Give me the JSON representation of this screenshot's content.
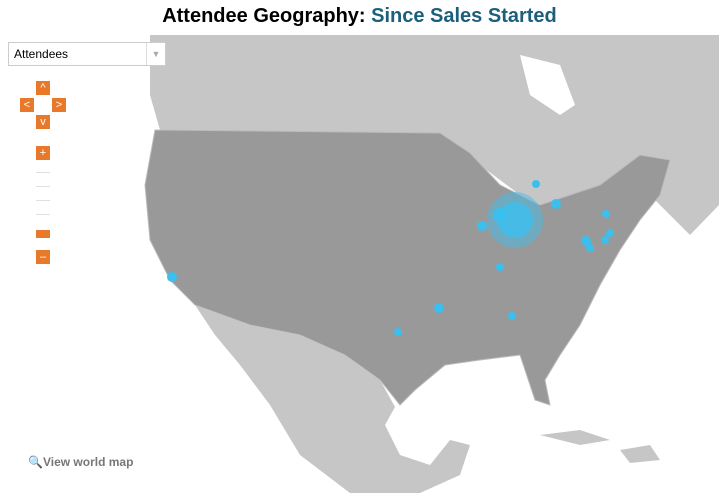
{
  "header": {
    "title": "Attendee Geography:",
    "subtitle": "Since Sales Started"
  },
  "controls": {
    "dropdown": "Attendees"
  },
  "footer": {
    "link": "View world map"
  }
}
